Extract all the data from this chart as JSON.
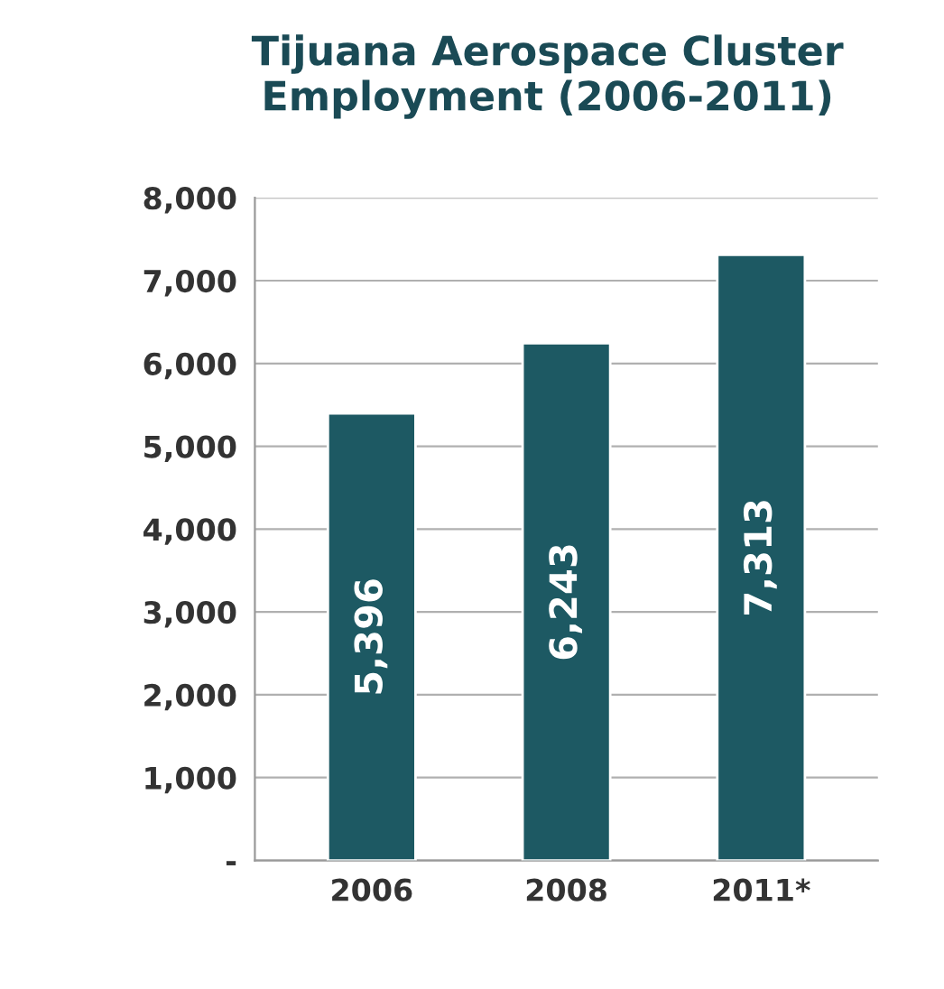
{
  "chart_data": {
    "type": "bar",
    "title": "Tijuana Aerospace Cluster\nEmployment (2006-2011)",
    "categories": [
      "2006",
      "2008",
      "2011*"
    ],
    "values": [
      5396,
      6243,
      7313
    ],
    "value_labels": [
      "5,396",
      "6,243",
      "7,313"
    ],
    "color": "#1d5963",
    "ylim": [
      0,
      8000
    ],
    "yticks": [
      {
        "value": 0,
        "label": "-"
      },
      {
        "value": 1000,
        "label": "1,000"
      },
      {
        "value": 2000,
        "label": "2,000"
      },
      {
        "value": 3000,
        "label": "3,000"
      },
      {
        "value": 4000,
        "label": "4,000"
      },
      {
        "value": 5000,
        "label": "5,000"
      },
      {
        "value": 6000,
        "label": "6,000"
      },
      {
        "value": 7000,
        "label": "7,000"
      },
      {
        "value": 8000,
        "label": "8,000"
      }
    ],
    "grid": "y"
  }
}
